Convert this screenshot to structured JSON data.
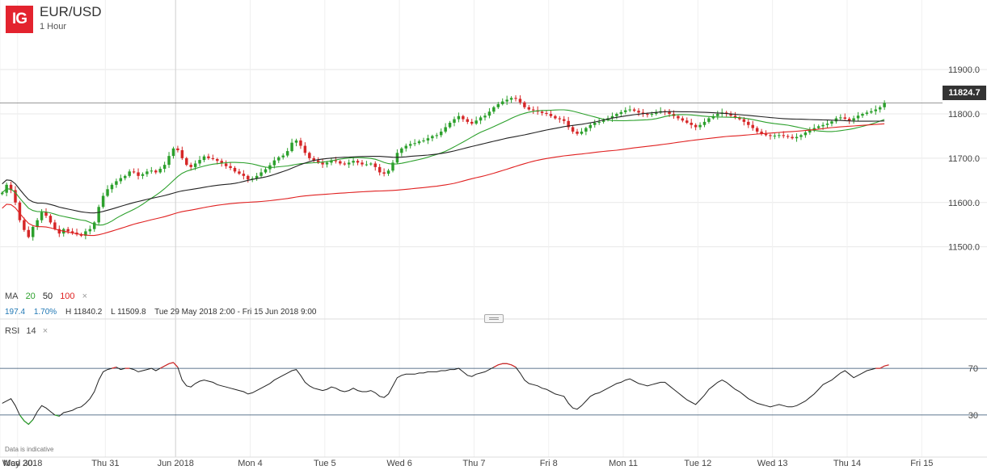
{
  "header": {
    "logo": "IG",
    "title": "EUR/USD",
    "subtitle": "1 Hour"
  },
  "indicators": {
    "ma_label": "MA",
    "ma_periods": [
      "20",
      "50",
      "100"
    ],
    "ma_colors": [
      "#2ca02c",
      "#222222",
      "#e02020"
    ],
    "remove_icon": "×",
    "rsi_label": "RSI",
    "rsi_period": "14"
  },
  "stats": {
    "change": "197.4",
    "change_pct": "1.70%",
    "high": "H 11840.2",
    "low": "L 11509.8",
    "range": "Tue 29 May 2018 2:00 - Fri 15 Jun 2018 9:00"
  },
  "current_price": "11824.7",
  "disclaimer": "Data is indicative",
  "colors": {
    "up": "#2ca02c",
    "down": "#d62728",
    "grid": "#e8e8e8",
    "accent": "#1f77b4"
  },
  "chart_data": {
    "type": "candlestick",
    "title": "EUR/USD",
    "subtitle": "1 Hour",
    "x_labels": [
      "May 2018",
      "Wed 30",
      "Thu 31",
      "Jun 2018",
      "Mon 4",
      "Tue 5",
      "Wed 6",
      "Thu 7",
      "Fri 8",
      "Mon 11",
      "Tue 12",
      "Wed 13",
      "Thu 14",
      "Fri 15"
    ],
    "x_label_positions": [
      0,
      4,
      24,
      40,
      57,
      74,
      91,
      108,
      125,
      142,
      159,
      176,
      193,
      210
    ],
    "x_range": [
      0,
      214
    ],
    "ylim": [
      11410,
      11975
    ],
    "y_ticks": [
      "11900.0",
      "11800.0",
      "11700.0",
      "11600.0",
      "11500.0"
    ],
    "y_tick_values": [
      11900,
      11800,
      11700,
      11600,
      11500
    ],
    "current_price": 11824.7,
    "close_prices": [
      11622,
      11640,
      11628,
      11600,
      11560,
      11538,
      11522,
      11545,
      11560,
      11578,
      11570,
      11555,
      11540,
      11530,
      11540,
      11535,
      11532,
      11528,
      11525,
      11535,
      11540,
      11555,
      11590,
      11615,
      11630,
      11640,
      11648,
      11655,
      11660,
      11670,
      11668,
      11660,
      11664,
      11670,
      11672,
      11668,
      11676,
      11685,
      11705,
      11722,
      11718,
      11700,
      11685,
      11680,
      11688,
      11696,
      11704,
      11700,
      11698,
      11694,
      11688,
      11682,
      11678,
      11670,
      11665,
      11660,
      11652,
      11654,
      11660,
      11668,
      11675,
      11684,
      11695,
      11702,
      11706,
      11716,
      11735,
      11740,
      11728,
      11712,
      11700,
      11695,
      11690,
      11686,
      11690,
      11695,
      11693,
      11688,
      11686,
      11690,
      11694,
      11690,
      11686,
      11686,
      11688,
      11680,
      11668,
      11665,
      11672,
      11690,
      11712,
      11722,
      11728,
      11732,
      11734,
      11738,
      11740,
      11745,
      11750,
      11752,
      11760,
      11770,
      11780,
      11788,
      11795,
      11788,
      11782,
      11778,
      11785,
      11792,
      11796,
      11805,
      11815,
      11822,
      11828,
      11832,
      11836,
      11834,
      11826,
      11815,
      11810,
      11808,
      11805,
      11802,
      11800,
      11795,
      11790,
      11788,
      11784,
      11770,
      11760,
      11755,
      11760,
      11768,
      11775,
      11780,
      11782,
      11786,
      11790,
      11795,
      11800,
      11804,
      11808,
      11810,
      11807,
      11803,
      11800,
      11798,
      11800,
      11803,
      11806,
      11805,
      11800,
      11795,
      11790,
      11785,
      11780,
      11775,
      11770,
      11775,
      11782,
      11790,
      11795,
      11800,
      11803,
      11800,
      11796,
      11792,
      11788,
      11782,
      11775,
      11768,
      11760,
      11755,
      11752,
      11750,
      11751,
      11752,
      11750,
      11748,
      11745,
      11748,
      11752,
      11758,
      11763,
      11768,
      11772,
      11775,
      11778,
      11783,
      11790,
      11792,
      11789,
      11785,
      11790,
      11796,
      11800,
      11803,
      11806,
      11810,
      11815,
      11824.7
    ],
    "series": [
      {
        "name": "MA 20",
        "color": "#2ca02c",
        "values": []
      },
      {
        "name": "MA 50",
        "color": "#222222",
        "values": []
      },
      {
        "name": "MA 100",
        "color": "#e02020",
        "values": []
      }
    ],
    "rsi": {
      "period": 14,
      "levels": [
        70,
        30
      ],
      "ylim": [
        5,
        95
      ],
      "values": [
        40,
        42,
        44,
        38,
        30,
        25,
        22,
        26,
        33,
        38,
        36,
        33,
        30,
        29,
        32,
        33,
        34,
        36,
        37,
        40,
        44,
        50,
        60,
        67,
        69,
        70,
        71,
        69,
        70,
        70,
        69,
        67,
        68,
        69,
        70,
        68,
        70,
        72,
        74,
        75,
        71,
        60,
        55,
        54,
        57,
        59,
        60,
        59,
        58,
        56,
        55,
        54,
        53,
        52,
        51,
        50,
        48,
        49,
        51,
        53,
        55,
        57,
        60,
        62,
        64,
        66,
        68,
        69,
        64,
        58,
        55,
        53,
        52,
        51,
        52,
        54,
        53,
        51,
        50,
        51,
        53,
        51,
        50,
        50,
        51,
        49,
        46,
        45,
        48,
        55,
        62,
        64,
        65,
        65,
        65,
        66,
        66,
        67,
        67,
        67,
        68,
        68,
        69,
        69,
        70,
        67,
        64,
        63,
        65,
        66,
        67,
        69,
        71,
        73,
        74,
        74,
        73,
        71,
        66,
        60,
        57,
        56,
        55,
        53,
        52,
        50,
        48,
        47,
        46,
        40,
        36,
        35,
        38,
        42,
        46,
        48,
        49,
        51,
        53,
        55,
        57,
        58,
        60,
        61,
        59,
        57,
        56,
        55,
        56,
        57,
        58,
        58,
        55,
        52,
        49,
        46,
        43,
        41,
        39,
        43,
        47,
        52,
        55,
        58,
        60,
        58,
        55,
        52,
        50,
        47,
        44,
        42,
        40,
        39,
        38,
        37,
        38,
        39,
        38,
        37,
        37,
        38,
        40,
        42,
        45,
        48,
        52,
        56,
        58,
        60,
        63,
        66,
        68,
        65,
        62,
        64,
        66,
        68,
        69,
        70,
        70,
        72,
        73
      ]
    }
  }
}
